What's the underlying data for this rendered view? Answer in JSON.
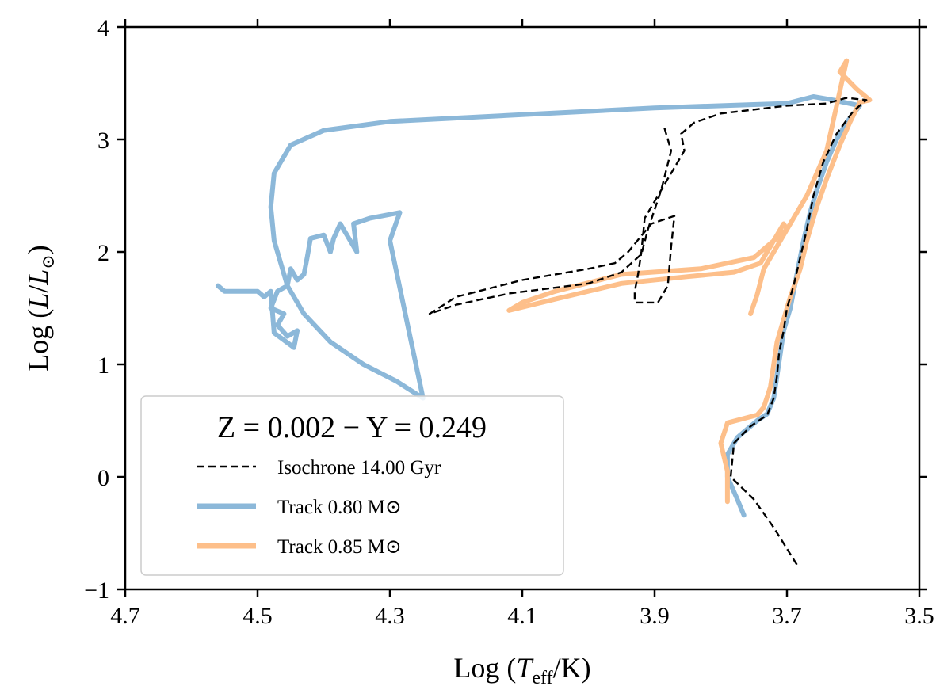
{
  "chart_data": {
    "type": "line",
    "xlabel": "Log (T_eff/K)",
    "xlabel_parts": {
      "prefix": "Log (",
      "sym": "T",
      "sub": "eff",
      "suffix": "/K)"
    },
    "ylabel": "Log (L/L_sun)",
    "ylabel_parts": {
      "prefix": "Log (",
      "sym": "L",
      "slash": "/",
      "sym2": "L",
      "sub": "⊙",
      "suffix": ")"
    },
    "xlim": [
      4.7,
      3.5
    ],
    "ylim": [
      -1,
      4
    ],
    "x_ticks": [
      4.7,
      4.5,
      4.3,
      4.1,
      3.9,
      3.7,
      3.5
    ],
    "x_tick_labels": [
      "4.7",
      "4.5",
      "4.3",
      "4.1",
      "3.9",
      "3.7",
      "3.5"
    ],
    "y_ticks": [
      -1,
      0,
      1,
      2,
      3,
      4
    ],
    "y_tick_labels": [
      "−1",
      "0",
      "1",
      "2",
      "3",
      "4"
    ],
    "legend": {
      "title": "Z = 0.002 − Y = 0.249",
      "placement": "lower-left",
      "entries": [
        {
          "label": "Isochrone 14.00 Gyr"
        },
        {
          "label": "Track 0.80 M⊙"
        },
        {
          "label": "Track 0.85 M⊙"
        }
      ]
    },
    "series": [
      {
        "name": "Track 0.80 M⊙",
        "color": "#8cb8d9",
        "style": "solid",
        "points": [
          [
            3.765,
            -0.34
          ],
          [
            3.775,
            -0.2
          ],
          [
            3.79,
            0
          ],
          [
            3.79,
            0.2
          ],
          [
            3.775,
            0.35
          ],
          [
            3.745,
            0.5
          ],
          [
            3.73,
            0.56
          ],
          [
            3.72,
            0.7
          ],
          [
            3.715,
            0.9
          ],
          [
            3.71,
            1.1
          ],
          [
            3.705,
            1.3
          ],
          [
            3.695,
            1.5
          ],
          [
            3.685,
            1.8
          ],
          [
            3.675,
            2.1
          ],
          [
            3.665,
            2.35
          ],
          [
            3.655,
            2.55
          ],
          [
            3.64,
            2.8
          ],
          [
            3.625,
            3.0
          ],
          [
            3.61,
            3.15
          ],
          [
            3.59,
            3.3
          ],
          [
            3.63,
            3.35
          ],
          [
            3.66,
            3.38
          ],
          [
            3.7,
            3.32
          ],
          [
            3.75,
            3.31
          ],
          [
            3.9,
            3.28
          ],
          [
            4.1,
            3.22
          ],
          [
            4.3,
            3.16
          ],
          [
            4.4,
            3.08
          ],
          [
            4.45,
            2.95
          ],
          [
            4.475,
            2.7
          ],
          [
            4.48,
            2.4
          ],
          [
            4.475,
            2.1
          ],
          [
            4.455,
            1.7
          ],
          [
            4.43,
            1.45
          ],
          [
            4.39,
            1.2
          ],
          [
            4.34,
            1.0
          ],
          [
            4.29,
            0.85
          ],
          [
            4.25,
            0.7
          ],
          [
            4.3,
            2.1
          ],
          [
            4.285,
            2.35
          ],
          [
            4.33,
            2.3
          ],
          [
            4.355,
            2.25
          ],
          [
            4.35,
            2.0
          ],
          [
            4.375,
            2.25
          ],
          [
            4.385,
            2.12
          ],
          [
            4.39,
            2.0
          ],
          [
            4.4,
            2.15
          ],
          [
            4.42,
            2.12
          ],
          [
            4.425,
            1.95
          ],
          [
            4.43,
            1.8
          ],
          [
            4.44,
            1.75
          ],
          [
            4.45,
            1.85
          ],
          [
            4.455,
            1.7
          ],
          [
            4.47,
            1.65
          ],
          [
            4.48,
            1.5
          ],
          [
            4.46,
            1.45
          ],
          [
            4.47,
            1.35
          ],
          [
            4.455,
            1.25
          ],
          [
            4.44,
            1.3
          ],
          [
            4.445,
            1.15
          ],
          [
            4.475,
            1.28
          ],
          [
            4.48,
            1.65
          ],
          [
            4.49,
            1.6
          ],
          [
            4.5,
            1.65
          ],
          [
            4.55,
            1.65
          ],
          [
            4.56,
            1.7
          ]
        ]
      },
      {
        "name": "Track 0.85 M⊙",
        "color": "#fdbf8a",
        "style": "solid",
        "points": [
          [
            3.79,
            -0.22
          ],
          [
            3.79,
            0.05
          ],
          [
            3.8,
            0.3
          ],
          [
            3.79,
            0.48
          ],
          [
            3.745,
            0.55
          ],
          [
            3.735,
            0.62
          ],
          [
            3.725,
            0.8
          ],
          [
            3.72,
            1.0
          ],
          [
            3.715,
            1.2
          ],
          [
            3.705,
            1.4
          ],
          [
            3.695,
            1.6
          ],
          [
            3.68,
            1.85
          ],
          [
            3.67,
            2.1
          ],
          [
            3.655,
            2.4
          ],
          [
            3.64,
            2.65
          ],
          [
            3.62,
            2.95
          ],
          [
            3.605,
            3.15
          ],
          [
            3.59,
            3.33
          ],
          [
            3.575,
            3.35
          ],
          [
            3.595,
            3.45
          ],
          [
            3.62,
            3.6
          ],
          [
            3.61,
            3.7
          ],
          [
            3.64,
            2.9
          ],
          [
            3.67,
            2.5
          ],
          [
            3.7,
            2.2
          ],
          [
            3.75,
            1.95
          ],
          [
            3.83,
            1.85
          ],
          [
            3.95,
            1.8
          ],
          [
            4.05,
            1.65
          ],
          [
            4.1,
            1.55
          ],
          [
            4.12,
            1.48
          ],
          [
            4.12,
            1.48
          ],
          [
            4.05,
            1.58
          ],
          [
            3.95,
            1.72
          ],
          [
            3.85,
            1.78
          ],
          [
            3.78,
            1.82
          ],
          [
            3.74,
            1.9
          ],
          [
            3.72,
            2.1
          ],
          [
            3.705,
            2.25
          ],
          [
            3.7,
            2.2
          ],
          [
            3.735,
            1.85
          ],
          [
            3.745,
            1.62
          ],
          [
            3.755,
            1.45
          ]
        ]
      },
      {
        "name": "Isochrone 14.00 Gyr",
        "color": "#000000",
        "style": "dashed",
        "points": [
          [
            3.685,
            -0.78
          ],
          [
            3.72,
            -0.45
          ],
          [
            3.75,
            -0.2
          ],
          [
            3.785,
            0.0
          ],
          [
            3.78,
            0.3
          ],
          [
            3.755,
            0.45
          ],
          [
            3.73,
            0.55
          ],
          [
            3.72,
            0.7
          ],
          [
            3.715,
            0.9
          ],
          [
            3.712,
            1.1
          ],
          [
            3.705,
            1.3
          ],
          [
            3.7,
            1.5
          ],
          [
            3.69,
            1.7
          ],
          [
            3.68,
            1.95
          ],
          [
            3.67,
            2.2
          ],
          [
            3.66,
            2.5
          ],
          [
            3.645,
            2.8
          ],
          [
            3.625,
            3.05
          ],
          [
            3.6,
            3.25
          ],
          [
            3.58,
            3.35
          ],
          [
            3.61,
            3.37
          ],
          [
            3.64,
            3.32
          ],
          [
            3.7,
            3.3
          ],
          [
            3.8,
            3.23
          ],
          [
            3.84,
            3.15
          ],
          [
            3.86,
            3.05
          ],
          [
            3.855,
            2.9
          ],
          [
            3.875,
            2.7
          ],
          [
            3.895,
            2.5
          ],
          [
            3.915,
            2.3
          ],
          [
            3.92,
            2.0
          ],
          [
            3.925,
            1.8
          ],
          [
            3.93,
            1.65
          ],
          [
            3.93,
            1.55
          ],
          [
            3.895,
            1.55
          ],
          [
            3.88,
            1.7
          ],
          [
            3.875,
            2.05
          ],
          [
            3.87,
            2.32
          ],
          [
            3.905,
            2.25
          ],
          [
            3.94,
            2.0
          ],
          [
            3.96,
            1.9
          ],
          [
            4.0,
            1.85
          ],
          [
            4.1,
            1.75
          ],
          [
            4.2,
            1.6
          ],
          [
            4.24,
            1.45
          ],
          [
            4.2,
            1.53
          ],
          [
            4.12,
            1.63
          ],
          [
            4.0,
            1.72
          ],
          [
            3.95,
            1.82
          ],
          [
            3.92,
            1.98
          ],
          [
            3.91,
            2.2
          ],
          [
            3.89,
            2.55
          ],
          [
            3.875,
            2.9
          ],
          [
            3.885,
            3.1
          ]
        ]
      }
    ]
  }
}
